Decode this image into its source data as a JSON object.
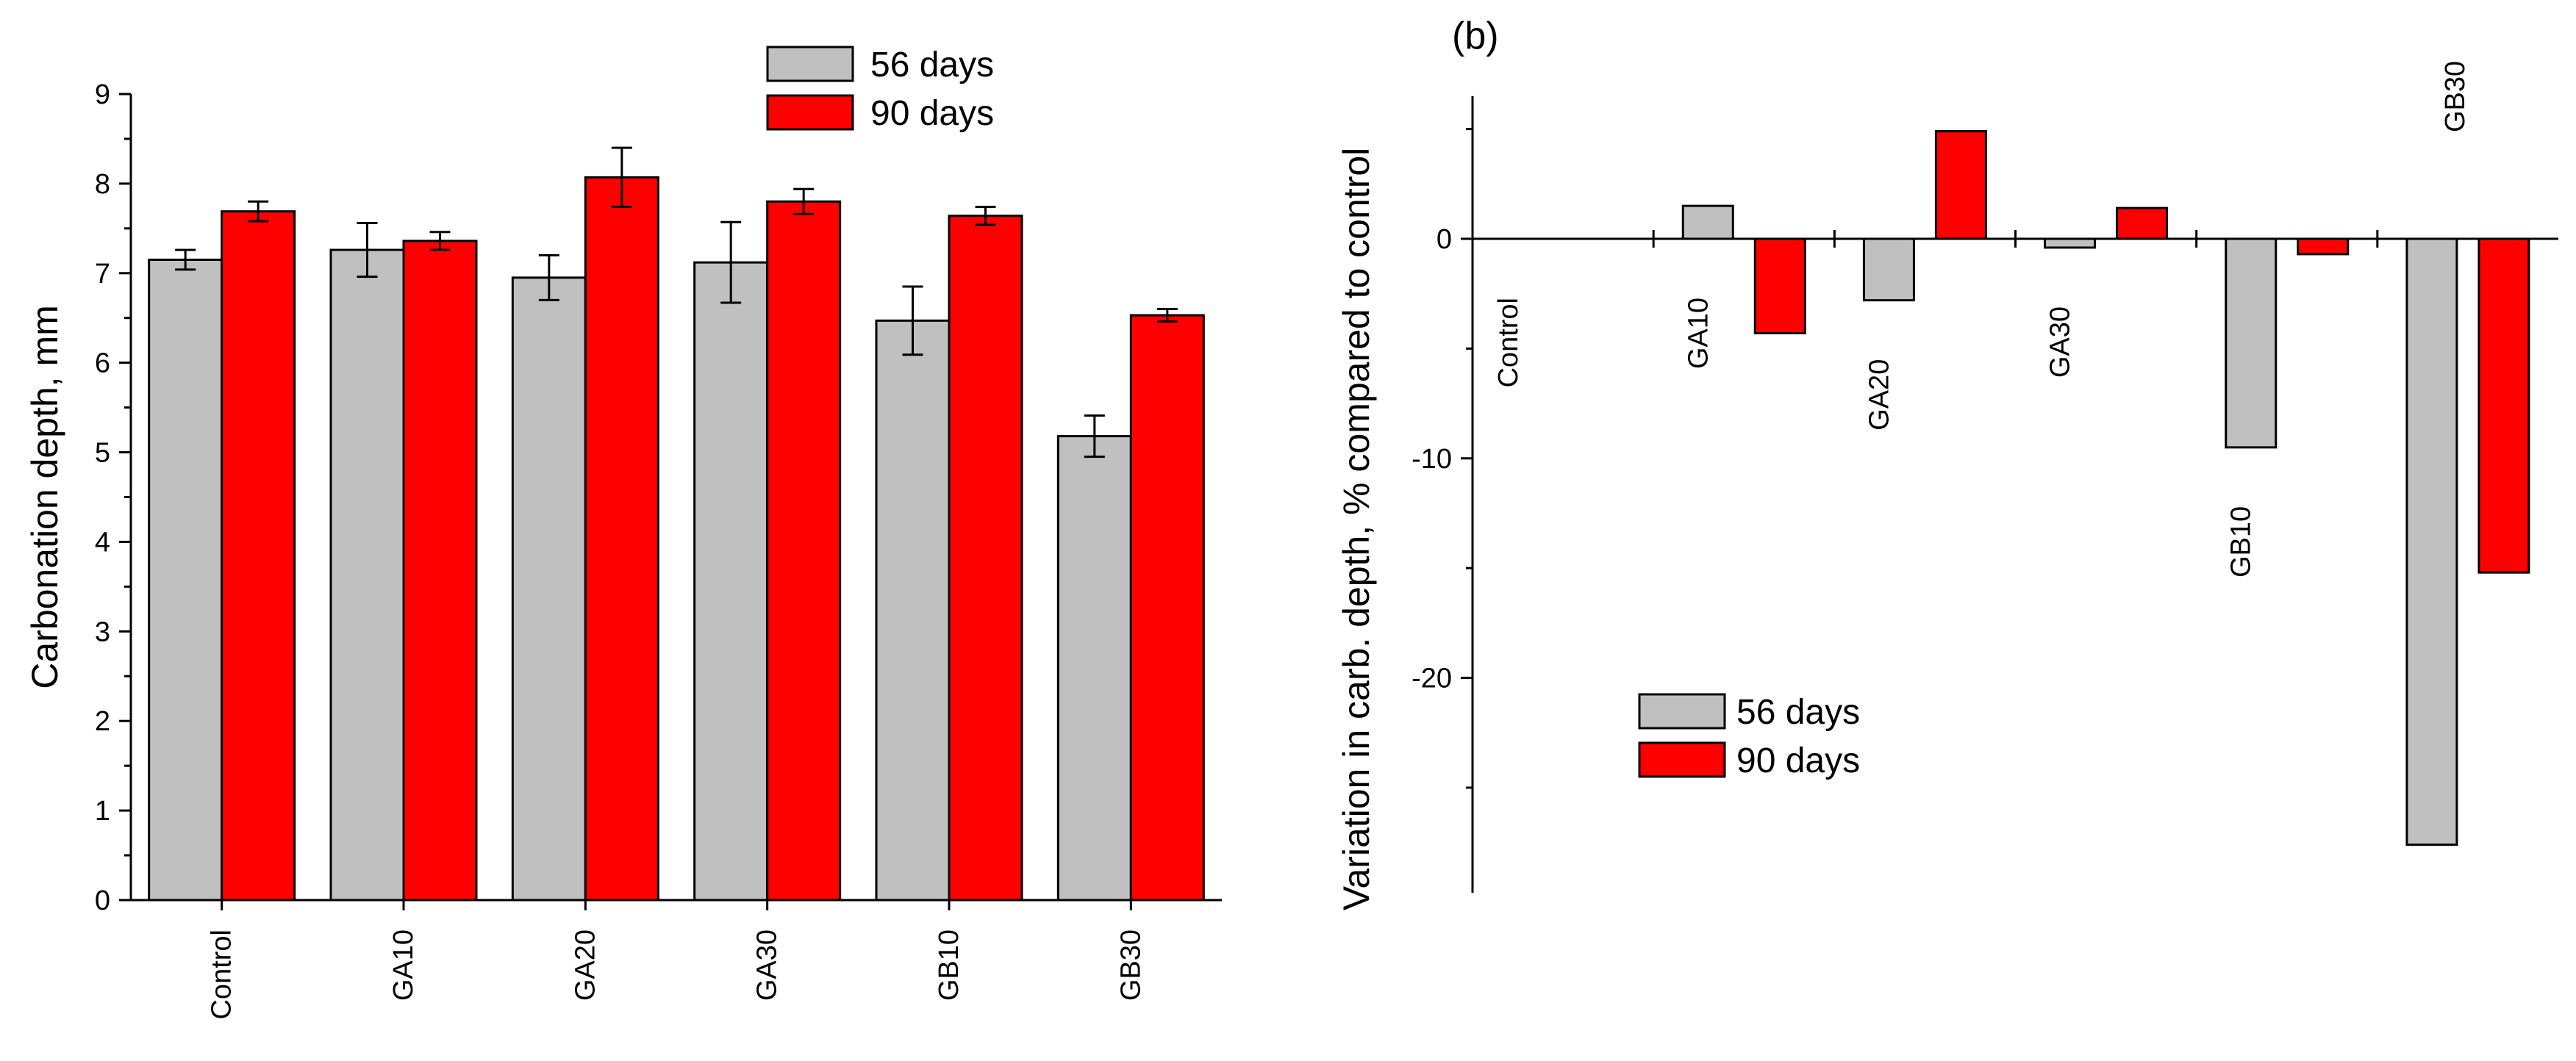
{
  "chart_data": [
    {
      "type": "bar",
      "panel": "a",
      "categories": [
        "Control",
        "GA10",
        "GA20",
        "GA30",
        "GB10",
        "GB30"
      ],
      "series": [
        {
          "name": "56 days",
          "color": "#c0c0c0",
          "values": [
            7.15,
            7.26,
            6.95,
            7.12,
            6.47,
            5.18
          ],
          "errors": [
            0.11,
            0.3,
            0.25,
            0.45,
            0.38,
            0.23
          ]
        },
        {
          "name": "90 days",
          "color": "#ff0000",
          "values": [
            7.69,
            7.36,
            8.07,
            7.8,
            7.64,
            6.53
          ],
          "errors": [
            0.11,
            0.1,
            0.33,
            0.14,
            0.1,
            0.07
          ]
        }
      ],
      "title": "",
      "xlabel": "",
      "ylabel": "Carbonation depth, mm",
      "ylim": [
        0,
        9
      ],
      "yticks": [
        "0",
        "1",
        "2",
        "3",
        "4",
        "5",
        "6",
        "7",
        "8",
        "9"
      ],
      "legend": [
        "56 days",
        "90 days"
      ],
      "legend_position": "top-center",
      "grid": false
    },
    {
      "type": "bar",
      "panel": "b",
      "panel_label": "(b)",
      "categories": [
        "Control",
        "GA10",
        "GA20",
        "GA30",
        "GB10",
        "GB30"
      ],
      "series": [
        {
          "name": "56 days",
          "color": "#c0c0c0",
          "values": [
            0,
            1.5,
            -2.8,
            -0.4,
            -9.5,
            -27.6
          ]
        },
        {
          "name": "90 days",
          "color": "#ff0000",
          "values": [
            0,
            -4.3,
            4.9,
            1.4,
            -0.7,
            -15.2
          ]
        }
      ],
      "title": "",
      "xlabel": "",
      "ylabel": "Variation in carb. depth, % compared to control",
      "ylim": [
        -30,
        6.5
      ],
      "yticks": [
        "-20",
        "-10",
        "0"
      ],
      "legend": [
        "56 days",
        "90 days"
      ],
      "legend_position": "bottom-left",
      "grid": false
    }
  ]
}
